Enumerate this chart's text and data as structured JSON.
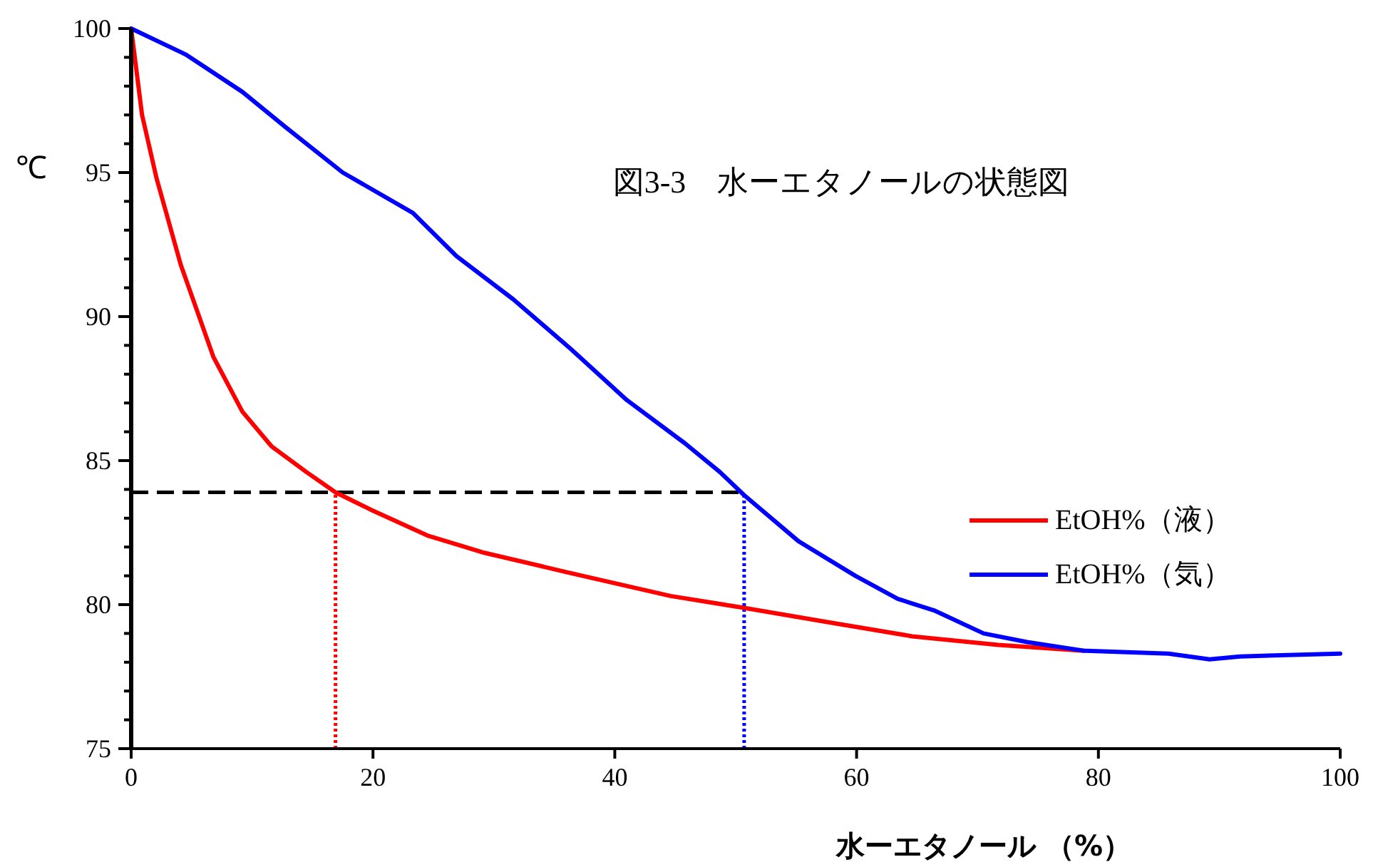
{
  "chart_data": {
    "type": "line",
    "title": "図3-3　水ーエタノールの状態図",
    "xlabel": "水ーエタノール （%）",
    "ylabel": "℃",
    "xlim": [
      0,
      100
    ],
    "ylim": [
      75,
      100
    ],
    "xticks": [
      0,
      20,
      40,
      60,
      80,
      100
    ],
    "yticks": [
      75,
      80,
      85,
      90,
      95,
      100
    ],
    "grid": false,
    "legend": "right",
    "marker": "none",
    "line_style": "solid",
    "series": [
      {
        "name": "EtOH%（液）",
        "color": "#ff0000",
        "x": [
          0,
          0.9,
          2.1,
          4.1,
          6.8,
          9.2,
          11.6,
          14.5,
          16.9,
          19.8,
          24.5,
          29.2,
          36.3,
          44.6,
          50.5,
          57.5,
          64.6,
          71.7,
          78.8
        ],
        "values": [
          100,
          97.0,
          94.8,
          91.8,
          88.6,
          86.7,
          85.5,
          84.6,
          83.9,
          83.3,
          82.4,
          81.8,
          81.1,
          80.3,
          79.9,
          79.4,
          78.9,
          78.6,
          78.4
        ]
      },
      {
        "name": "EtOH%（気）",
        "color": "#0000ff",
        "x": [
          0,
          4.5,
          9.2,
          12.7,
          17.5,
          23.3,
          26.9,
          31.6,
          36.3,
          41.0,
          45.8,
          48.7,
          50.7,
          55.2,
          59.9,
          63.4,
          66.4,
          70.5,
          74.1,
          78.8,
          85.8,
          89.2,
          91.7,
          100
        ],
        "values": [
          100,
          99.1,
          97.8,
          96.6,
          95.0,
          93.6,
          92.1,
          90.6,
          88.9,
          87.1,
          85.6,
          84.6,
          83.8,
          82.2,
          81.0,
          80.2,
          79.8,
          79.0,
          78.7,
          78.4,
          78.3,
          78.1,
          78.2,
          78.3
        ]
      }
    ],
    "ref_lines": [
      {
        "axis": "y",
        "value": 83.9,
        "color": "#000000",
        "line_style": "dashed"
      },
      {
        "axis": "x",
        "value": 16.9,
        "color": "#ff0000",
        "line_style": "dotted"
      },
      {
        "axis": "x",
        "value": 50.7,
        "color": "#0000ff",
        "line_style": "dotted"
      }
    ]
  }
}
